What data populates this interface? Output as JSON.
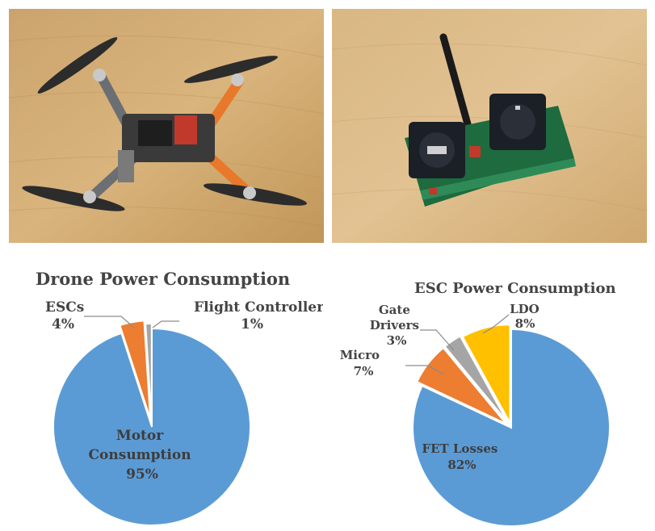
{
  "photos": [
    {
      "subject": "quadcopter drone with carbon propellers and orange motor arms"
    },
    {
      "subject": "radio transmitter circuit board with two gimbal sticks and antenna"
    }
  ],
  "chart_data": [
    {
      "type": "pie",
      "title": "Drone Power Consumption",
      "slices": [
        {
          "name": "Motor Consumption",
          "value": 95,
          "color": "#5b9bd5",
          "label_lines": [
            "Motor",
            "Consumption",
            "95%"
          ]
        },
        {
          "name": "ESCs",
          "value": 4,
          "color": "#ed7d31",
          "label_lines": [
            "ESCs",
            "4%"
          ]
        },
        {
          "name": "Flight Controller",
          "value": 1,
          "color": "#a5a5a5",
          "label_lines": [
            "Flight Controller",
            "1%"
          ]
        }
      ]
    },
    {
      "type": "pie",
      "title": "ESC Power Consumption",
      "slices": [
        {
          "name": "FET Losses",
          "value": 82,
          "color": "#5b9bd5",
          "label_lines": [
            "FET Losses",
            "82%"
          ]
        },
        {
          "name": "Micro",
          "value": 7,
          "color": "#ed7d31",
          "label_lines": [
            "Micro",
            "7%"
          ]
        },
        {
          "name": "Gate Drivers",
          "value": 3,
          "color": "#a5a5a5",
          "label_lines": [
            "Gate",
            "Drivers",
            "3%"
          ]
        },
        {
          "name": "LDO",
          "value": 8,
          "color": "#ffc000",
          "label_lines": [
            "LDO",
            "8%"
          ]
        }
      ]
    }
  ]
}
